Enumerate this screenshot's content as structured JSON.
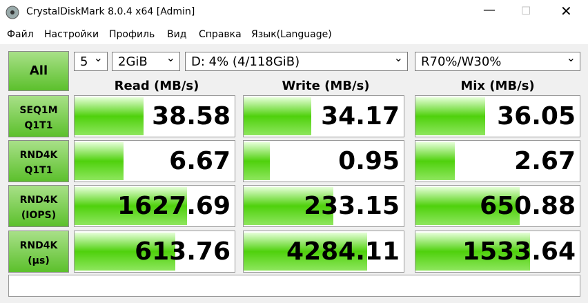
{
  "window": {
    "title": "CrystalDiskMark 8.0.4 x64 [Admin]"
  },
  "menu": [
    "Файл",
    "Настройки",
    "Профиль",
    "Вид",
    "Справка",
    "Язык(Language)"
  ],
  "controls": {
    "all_button": "All",
    "count": "5",
    "size": "2GiB",
    "drive": "D: 4% (4/118GiB)",
    "mix": "R70%/W30%"
  },
  "headers": [
    "Read (MB/s)",
    "Write (MB/s)",
    "Mix (MB/s)"
  ],
  "rows": [
    {
      "label": [
        "SEQ1M",
        "Q1T1"
      ],
      "values": [
        "38.58",
        "34.17",
        "36.05"
      ]
    },
    {
      "label": [
        "RND4K",
        "Q1T1"
      ],
      "values": [
        "6.67",
        "0.95",
        "2.67"
      ]
    },
    {
      "label": [
        "RND4K",
        "(IOPS)"
      ],
      "values": [
        "1627.69",
        "233.15",
        "650.88"
      ]
    },
    {
      "label": [
        "RND4K",
        "(μs)"
      ],
      "values": [
        "613.76",
        "4284.11",
        "1533.64"
      ]
    }
  ]
}
